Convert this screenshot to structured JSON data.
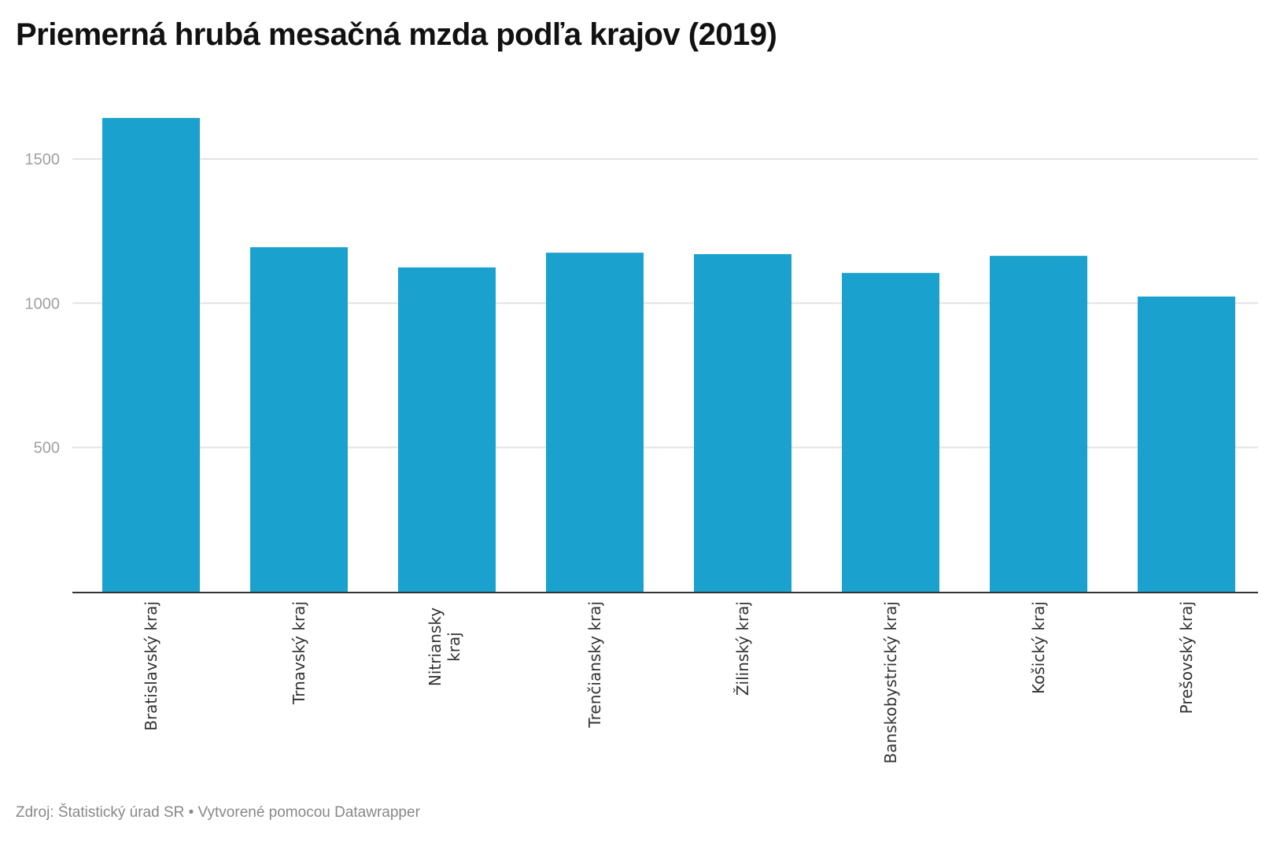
{
  "title": "Priemerná hrubá mesačná mzda podľa krajov (2019)",
  "footer": "Zdroj: Štatistický úrad SR • Vytvorené pomocou Datawrapper",
  "chart_data": {
    "type": "bar",
    "title": "Priemerná hrubá mesačná mzda podľa krajov (2019)",
    "xlabel": "",
    "ylabel": "",
    "categories": [
      "Bratislavský kraj",
      "Trnavský kraj",
      "Nitriansky kraj",
      "Trenčiansky kraj",
      "Žilinský kraj",
      "Banskobystrický kraj",
      "Košický kraj",
      "Prešovský kraj"
    ],
    "values": [
      1642,
      1194,
      1124,
      1175,
      1170,
      1105,
      1164,
      1023
    ],
    "ylim": [
      0,
      1650
    ],
    "yticks": [
      500,
      1000,
      1500
    ],
    "ytick_labels": [
      "500",
      "1000",
      "1500"
    ],
    "grid": true,
    "bar_color": "#1aa1cd"
  }
}
